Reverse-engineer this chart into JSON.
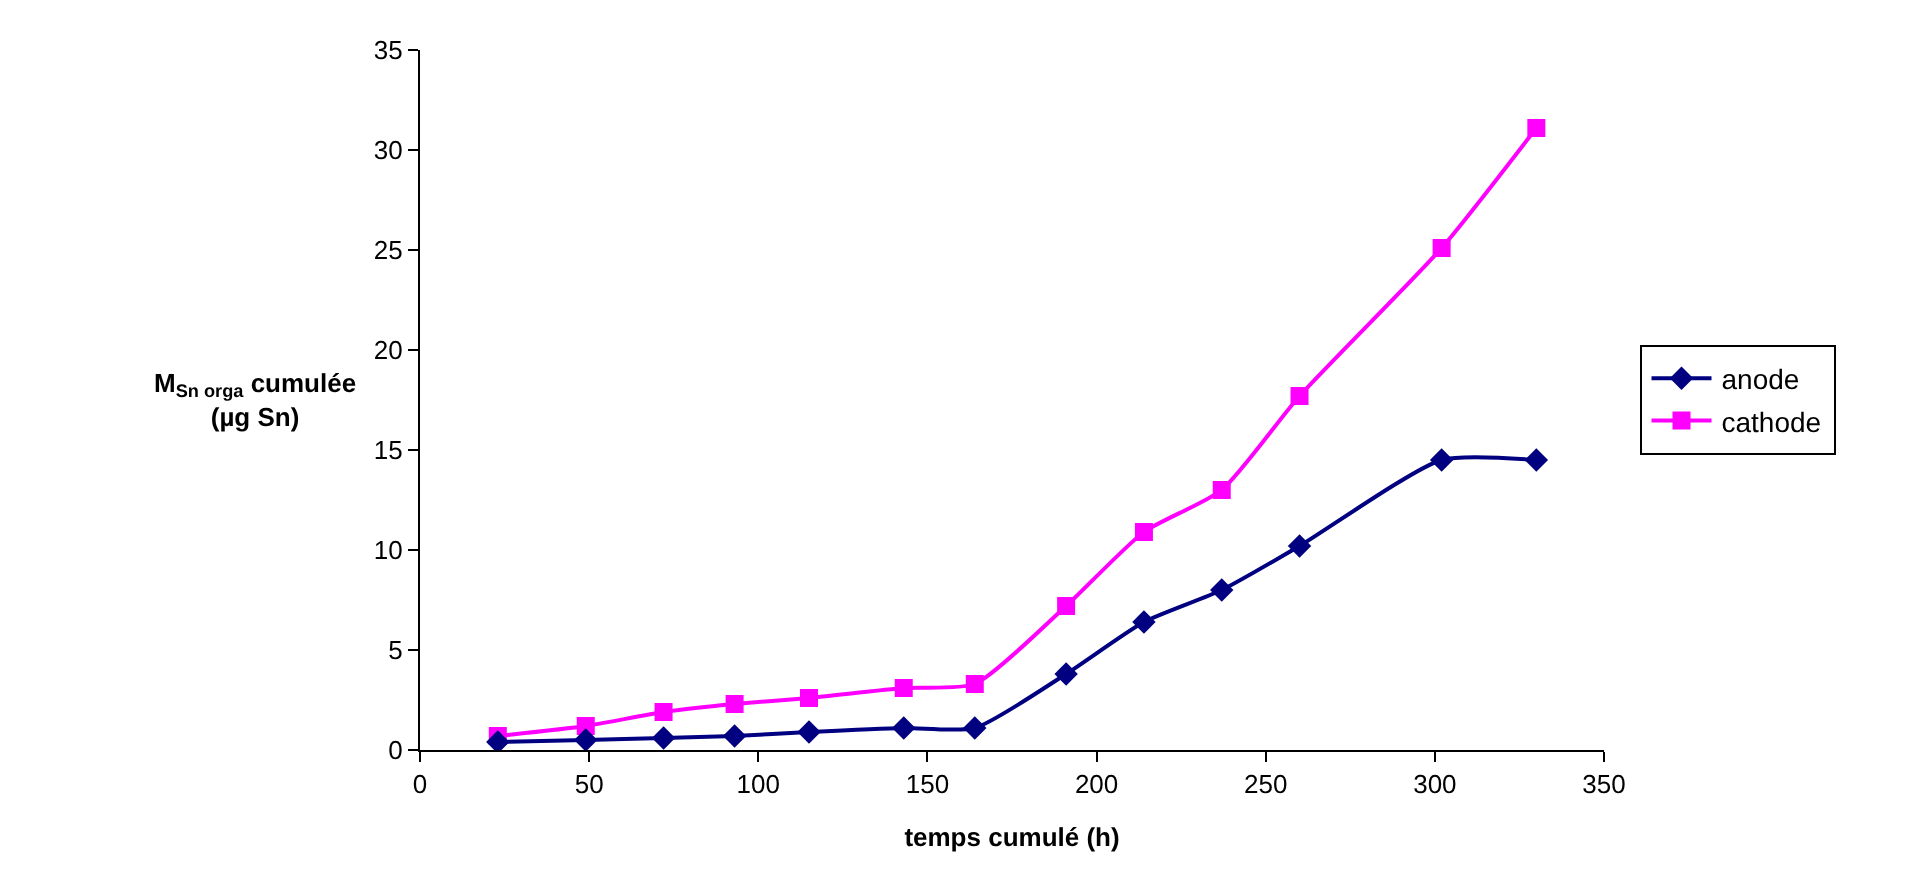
{
  "chart_data": {
    "type": "line",
    "xlabel": "temps cumulé (h)",
    "ylabel": "M$_{Sn orga}$ cumulée\n(µg Sn)",
    "x": [
      23,
      49,
      72,
      93,
      115,
      143,
      164,
      191,
      214,
      237,
      260,
      302,
      330
    ],
    "series": [
      {
        "name": "anode",
        "color": "#000080",
        "marker": "diamond",
        "values": [
          0.4,
          0.5,
          0.6,
          0.7,
          0.9,
          1.1,
          1.1,
          3.8,
          6.4,
          8.0,
          10.2,
          14.5,
          14.5
        ]
      },
      {
        "name": "cathode",
        "color": "#ff00ff",
        "marker": "square",
        "values": [
          0.7,
          1.2,
          1.9,
          2.3,
          2.6,
          3.1,
          3.3,
          7.2,
          10.9,
          13.0,
          17.7,
          25.1,
          31.1
        ]
      }
    ],
    "xlim": [
      0,
      350
    ],
    "xticks": [
      0,
      50,
      100,
      150,
      200,
      250,
      300,
      350
    ],
    "ylim": [
      0,
      35
    ],
    "yticks": [
      0,
      5,
      10,
      15,
      20,
      25,
      30,
      35
    ],
    "legend": "right",
    "line_style": "solid"
  }
}
